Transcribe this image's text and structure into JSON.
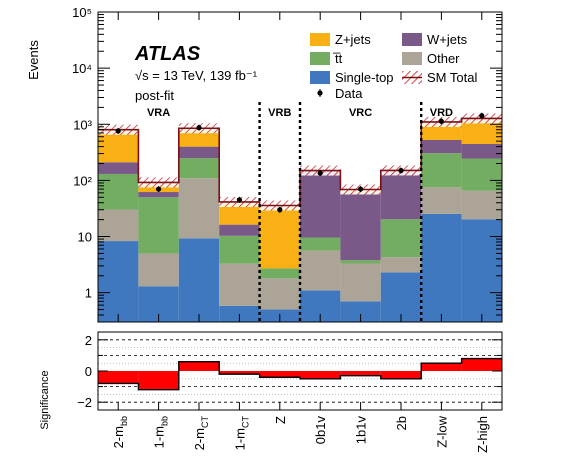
{
  "chart_data": [
    {
      "type": "bar",
      "stacked": true,
      "log_y": true,
      "ylabel": "Events",
      "ylim": [
        0.3,
        100000
      ],
      "categories": [
        "2-m_bb",
        "1-m_bb",
        "2-m_CT",
        "1-m_CT",
        "Z",
        "0b1v",
        "1b1v",
        "2b",
        "Z-low",
        "Z-high"
      ],
      "series": [
        {
          "name": "Single-top",
          "color": "#3f78bf",
          "values": [
            8,
            1.0,
            9,
            0.28,
            0.2,
            0.8,
            0.4,
            2.0,
            25,
            20
          ]
        },
        {
          "name": "Other",
          "color": "#aca597",
          "values": [
            22,
            3.7,
            100,
            2.7,
            1.3,
            4.5,
            2.6,
            2.0,
            50,
            45
          ]
        },
        {
          "name": "t̅t",
          "color": "#72ad62",
          "values": [
            100,
            45,
            140,
            7,
            0.9,
            4,
            0.5,
            16,
            230,
            180
          ]
        },
        {
          "name": "W+jets",
          "color": "#7a5887",
          "values": [
            80,
            12,
            150,
            6,
            0,
            140,
            55,
            130,
            220,
            200
          ]
        },
        {
          "name": "Z+jets",
          "color": "#f9b014",
          "values": [
            590,
            30,
            450,
            25,
            33,
            0,
            10,
            0,
            575,
            825
          ]
        }
      ],
      "data_points": [
        760,
        70,
        870,
        45,
        30,
        135,
        70,
        150,
        1130,
        1420
      ],
      "text": {
        "atlas": "ATLAS",
        "energy": "√s = 13 TeV, 139 fb⁻¹",
        "fit": "post-fit",
        "legend": {
          "zjets": "Z+jets",
          "wjets": "W+jets",
          "ttbar": "t̅t",
          "other": "Other",
          "singletop": "Single-top",
          "smtotal": "SM Total",
          "data": "Data"
        },
        "regions": [
          "VRA",
          "VRB",
          "VRC",
          "VRD"
        ],
        "y_ticks": [
          "1",
          "10",
          "10²",
          "10³",
          "10⁴",
          "10⁵"
        ],
        "tick_labels": [
          {
            "main": "2-m",
            "sub": "bb"
          },
          {
            "main": "1-m",
            "sub": "bb"
          },
          {
            "main": "2-m",
            "sub": "CT"
          },
          {
            "main": "1-m",
            "sub": "CT"
          },
          {
            "main": "Z",
            "sub": ""
          },
          {
            "main": "0b1v",
            "sub": ""
          },
          {
            "main": "1b1v",
            "sub": ""
          },
          {
            "main": "2b",
            "sub": ""
          },
          {
            "main": "Z-low",
            "sub": ""
          },
          {
            "main": "Z-high",
            "sub": ""
          }
        ]
      }
    },
    {
      "type": "bar",
      "ylabel": "Significance",
      "ylim": [
        -2.5,
        2.5
      ],
      "y_ticks": [
        "2",
        "0",
        "−2"
      ],
      "values": [
        -0.8,
        -1.2,
        0.6,
        -0.2,
        -0.4,
        -0.5,
        -0.3,
        -0.5,
        0.5,
        0.8
      ],
      "grid_levels": [
        -2,
        -1,
        1,
        2
      ],
      "color": "#ff0000"
    }
  ]
}
